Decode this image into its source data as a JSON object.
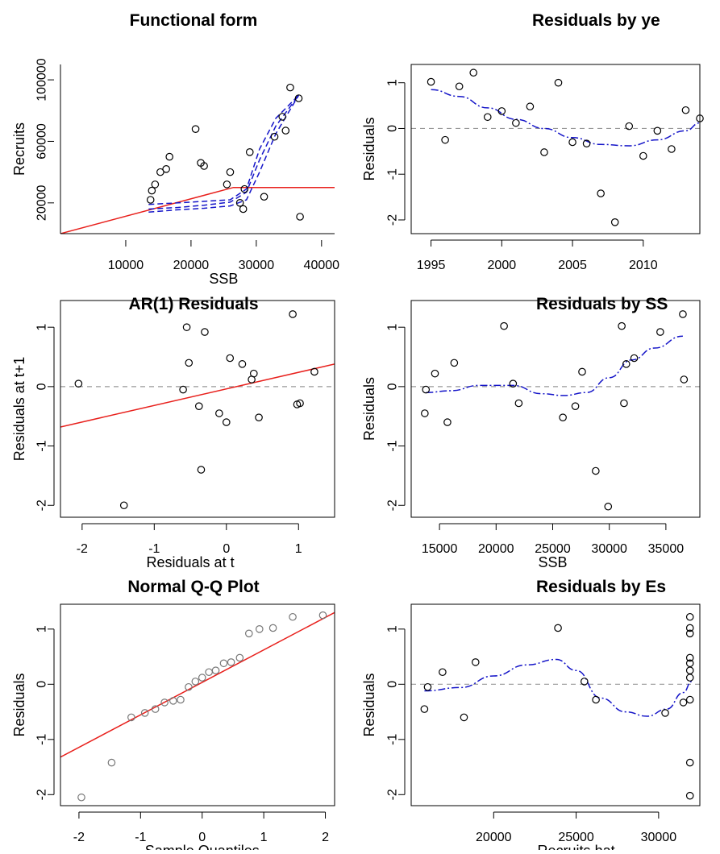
{
  "chart_data": [
    {
      "id": "functional-form",
      "type": "scatter",
      "title": "Functional form",
      "xlabel": "SSB",
      "ylabel": "Recruits",
      "xlim": [
        0,
        42000
      ],
      "ylim": [
        0,
        110000
      ],
      "xticks": [
        10000,
        20000,
        30000,
        40000
      ],
      "yticks": [
        20000,
        60000,
        100000
      ],
      "ytick_labels": [
        "20000",
        "60000",
        "100000"
      ],
      "points": [
        {
          "x": 13800,
          "y": 22000
        },
        {
          "x": 14000,
          "y": 28000
        },
        {
          "x": 14500,
          "y": 32000
        },
        {
          "x": 15300,
          "y": 40000
        },
        {
          "x": 16200,
          "y": 42000
        },
        {
          "x": 16700,
          "y": 50000
        },
        {
          "x": 20700,
          "y": 68000
        },
        {
          "x": 21500,
          "y": 46000
        },
        {
          "x": 22000,
          "y": 44000
        },
        {
          "x": 25500,
          "y": 32000
        },
        {
          "x": 26000,
          "y": 40000
        },
        {
          "x": 27500,
          "y": 20000
        },
        {
          "x": 28000,
          "y": 16000
        },
        {
          "x": 28200,
          "y": 29000
        },
        {
          "x": 29000,
          "y": 53000
        },
        {
          "x": 31200,
          "y": 24000
        },
        {
          "x": 32800,
          "y": 63000
        },
        {
          "x": 34000,
          "y": 76000
        },
        {
          "x": 34500,
          "y": 67000
        },
        {
          "x": 35200,
          "y": 95000
        },
        {
          "x": 36500,
          "y": 88000
        },
        {
          "x": 36700,
          "y": 11000
        }
      ],
      "lines": [
        {
          "style": "solid",
          "color": "#e8201c",
          "x": [
            0,
            26500,
            42000
          ],
          "y": [
            0,
            30000,
            30000
          ]
        },
        {
          "style": "dashed",
          "color": "#1414c8",
          "x": [
            13500,
            18000,
            22000,
            26000,
            28500,
            30500,
            33000,
            36500
          ],
          "y": [
            14000,
            15500,
            16500,
            18000,
            22000,
            40000,
            65000,
            90000
          ]
        },
        {
          "style": "dashed",
          "color": "#1414c8",
          "x": [
            13500,
            18000,
            22000,
            26000,
            28500,
            30500,
            33000,
            36500
          ],
          "y": [
            16000,
            17000,
            18500,
            20500,
            27000,
            48000,
            70000,
            90000
          ]
        },
        {
          "style": "dashed",
          "color": "#1414c8",
          "x": [
            13500,
            18000,
            22000,
            26000,
            28500,
            30500,
            33000,
            36500
          ],
          "y": [
            19000,
            20000,
            21000,
            22000,
            29000,
            55000,
            75000,
            90000
          ]
        }
      ]
    },
    {
      "id": "residuals-by-year",
      "type": "scatter",
      "title": "Residuals by ye",
      "xlabel": "",
      "ylabel": "Residuals",
      "xlim": [
        1993.6,
        2014
      ],
      "ylim": [
        -2.3,
        1.4
      ],
      "xticks": [
        1995,
        2000,
        2005,
        2010
      ],
      "yticks": [
        -2,
        -1,
        0,
        1
      ],
      "hline": 0,
      "points": [
        {
          "x": 1995,
          "y": 1.02
        },
        {
          "x": 1996,
          "y": -0.25
        },
        {
          "x": 1997,
          "y": 0.92
        },
        {
          "x": 1998,
          "y": 1.22
        },
        {
          "x": 1999,
          "y": 0.25
        },
        {
          "x": 2000,
          "y": 0.38
        },
        {
          "x": 2001,
          "y": 0.12
        },
        {
          "x": 2002,
          "y": 0.48
        },
        {
          "x": 2003,
          "y": -0.52
        },
        {
          "x": 2004,
          "y": 1.0
        },
        {
          "x": 2005,
          "y": -0.3
        },
        {
          "x": 2006,
          "y": -0.33
        },
        {
          "x": 2007,
          "y": -1.42
        },
        {
          "x": 2008,
          "y": -2.05
        },
        {
          "x": 2009,
          "y": 0.05
        },
        {
          "x": 2010,
          "y": -0.6
        },
        {
          "x": 2011,
          "y": -0.05
        },
        {
          "x": 2012,
          "y": -0.45
        },
        {
          "x": 2013,
          "y": 0.4
        },
        {
          "x": 2014,
          "y": 0.22
        }
      ],
      "smooth": {
        "x": [
          1995,
          1997,
          1999,
          2001,
          2003,
          2005,
          2007,
          2009,
          2011,
          2013,
          2014
        ],
        "y": [
          0.85,
          0.7,
          0.45,
          0.2,
          0.0,
          -0.2,
          -0.35,
          -0.38,
          -0.25,
          -0.05,
          0.12
        ]
      }
    },
    {
      "id": "ar1-residuals",
      "type": "scatter",
      "title": "AR(1) Residuals",
      "xlabel": "Residuals at t",
      "ylabel": "Residuals at t+1",
      "xlim": [
        -2.3,
        1.5
      ],
      "ylim": [
        -2.2,
        1.45
      ],
      "xticks": [
        -2,
        -1,
        0,
        1
      ],
      "yticks": [
        -2,
        -1,
        0,
        1
      ],
      "hline": 0,
      "points": [
        {
          "x": -2.05,
          "y": 0.05
        },
        {
          "x": -1.42,
          "y": -2.0
        },
        {
          "x": -0.6,
          "y": -0.05
        },
        {
          "x": -0.55,
          "y": 1.0
        },
        {
          "x": -0.52,
          "y": 0.4
        },
        {
          "x": -0.38,
          "y": -0.33
        },
        {
          "x": -0.35,
          "y": -1.4
        },
        {
          "x": -0.3,
          "y": 0.92
        },
        {
          "x": -0.1,
          "y": -0.45
        },
        {
          "x": 0.0,
          "y": -0.6
        },
        {
          "x": 0.05,
          "y": 0.48
        },
        {
          "x": 0.22,
          "y": 0.38
        },
        {
          "x": 0.35,
          "y": 0.12
        },
        {
          "x": 0.38,
          "y": 0.22
        },
        {
          "x": 0.45,
          "y": -0.52
        },
        {
          "x": 0.92,
          "y": 1.22
        },
        {
          "x": 0.98,
          "y": -0.3
        },
        {
          "x": 1.02,
          "y": -0.28
        },
        {
          "x": 1.22,
          "y": 0.25
        }
      ],
      "fit_line": {
        "x": [
          -2.3,
          1.5
        ],
        "y": [
          -0.68,
          0.38
        ]
      }
    },
    {
      "id": "residuals-by-ssb",
      "type": "scatter",
      "title": "Residuals by SS",
      "xlabel": "SSB",
      "ylabel": "Residuals",
      "xlim": [
        12500,
        38000
      ],
      "ylim": [
        -2.2,
        1.45
      ],
      "xticks": [
        15000,
        20000,
        25000,
        30000,
        35000
      ],
      "yticks": [
        -2,
        -1,
        0,
        1
      ],
      "hline": 0,
      "points": [
        {
          "x": 13700,
          "y": -0.45
        },
        {
          "x": 13800,
          "y": -0.05
        },
        {
          "x": 14600,
          "y": 0.22
        },
        {
          "x": 15700,
          "y": -0.6
        },
        {
          "x": 16300,
          "y": 0.4
        },
        {
          "x": 20700,
          "y": 1.02
        },
        {
          "x": 21500,
          "y": 0.05
        },
        {
          "x": 22000,
          "y": -0.28
        },
        {
          "x": 25900,
          "y": -0.52
        },
        {
          "x": 27000,
          "y": -0.33
        },
        {
          "x": 27600,
          "y": 0.25
        },
        {
          "x": 28800,
          "y": -1.42
        },
        {
          "x": 29900,
          "y": -2.02
        },
        {
          "x": 31100,
          "y": 1.02
        },
        {
          "x": 31300,
          "y": -0.28
        },
        {
          "x": 31500,
          "y": 0.38
        },
        {
          "x": 32200,
          "y": 0.48
        },
        {
          "x": 34500,
          "y": 0.92
        },
        {
          "x": 36500,
          "y": 1.22
        },
        {
          "x": 36600,
          "y": 0.12
        }
      ],
      "smooth": {
        "x": [
          13800,
          16000,
          18500,
          21500,
          24000,
          26000,
          28000,
          30000,
          32000,
          34000,
          36500
        ],
        "y": [
          -0.1,
          -0.07,
          0.02,
          0.02,
          -0.12,
          -0.15,
          -0.1,
          0.15,
          0.45,
          0.65,
          0.85
        ]
      }
    },
    {
      "id": "normal-qq",
      "type": "scatter",
      "title": "Normal Q-Q Plot",
      "xlabel": "Sample Quantiles",
      "ylabel": "Residuals",
      "xlim": [
        -2.3,
        2.15
      ],
      "ylim": [
        -2.2,
        1.45
      ],
      "xticks": [
        -2,
        -1,
        0,
        1,
        2
      ],
      "yticks": [
        -2,
        -1,
        0,
        1
      ],
      "points": [
        {
          "x": -1.96,
          "y": -2.05
        },
        {
          "x": -1.47,
          "y": -1.42
        },
        {
          "x": -1.15,
          "y": -0.6
        },
        {
          "x": -0.93,
          "y": -0.52
        },
        {
          "x": -0.76,
          "y": -0.45
        },
        {
          "x": -0.61,
          "y": -0.33
        },
        {
          "x": -0.47,
          "y": -0.3
        },
        {
          "x": -0.35,
          "y": -0.28
        },
        {
          "x": -0.22,
          "y": -0.05
        },
        {
          "x": -0.11,
          "y": 0.05
        },
        {
          "x": 0.0,
          "y": 0.12
        },
        {
          "x": 0.11,
          "y": 0.22
        },
        {
          "x": 0.22,
          "y": 0.25
        },
        {
          "x": 0.35,
          "y": 0.38
        },
        {
          "x": 0.47,
          "y": 0.4
        },
        {
          "x": 0.61,
          "y": 0.48
        },
        {
          "x": 0.76,
          "y": 0.92
        },
        {
          "x": 0.93,
          "y": 1.0
        },
        {
          "x": 1.15,
          "y": 1.02
        },
        {
          "x": 1.47,
          "y": 1.22
        },
        {
          "x": 1.96,
          "y": 1.25
        }
      ],
      "fit_line": {
        "x": [
          -2.3,
          2.15
        ],
        "y": [
          -1.32,
          1.3
        ]
      }
    },
    {
      "id": "residuals-by-estimated",
      "type": "scatter",
      "title": "Residuals by Es",
      "xlabel": "Recruits hat",
      "ylabel": "Residuals",
      "xlim": [
        15000,
        32500
      ],
      "ylim": [
        -2.2,
        1.45
      ],
      "xticks": [
        20000,
        25000,
        30000
      ],
      "yticks": [
        -2,
        -1,
        0,
        1
      ],
      "hline": 0,
      "points": [
        {
          "x": 15800,
          "y": -0.45
        },
        {
          "x": 16000,
          "y": -0.05
        },
        {
          "x": 16900,
          "y": 0.22
        },
        {
          "x": 18200,
          "y": -0.6
        },
        {
          "x": 18900,
          "y": 0.4
        },
        {
          "x": 23900,
          "y": 1.02
        },
        {
          "x": 25500,
          "y": 0.05
        },
        {
          "x": 26200,
          "y": -0.28
        },
        {
          "x": 30400,
          "y": -0.52
        },
        {
          "x": 31500,
          "y": -0.33
        },
        {
          "x": 31900,
          "y": 1.22
        },
        {
          "x": 31900,
          "y": 1.02
        },
        {
          "x": 31900,
          "y": 0.92
        },
        {
          "x": 31900,
          "y": 0.48
        },
        {
          "x": 31900,
          "y": 0.38
        },
        {
          "x": 31900,
          "y": 0.25
        },
        {
          "x": 31900,
          "y": 0.12
        },
        {
          "x": 31900,
          "y": -0.28
        },
        {
          "x": 31900,
          "y": -1.42
        },
        {
          "x": 31900,
          "y": -2.02
        }
      ],
      "smooth": {
        "x": [
          15800,
          18000,
          20000,
          22000,
          23800,
          25000,
          26500,
          28000,
          29300,
          30500,
          31500,
          32000
        ],
        "y": [
          -0.12,
          -0.06,
          0.15,
          0.35,
          0.45,
          0.25,
          -0.25,
          -0.5,
          -0.58,
          -0.45,
          -0.15,
          0.05
        ]
      }
    }
  ]
}
